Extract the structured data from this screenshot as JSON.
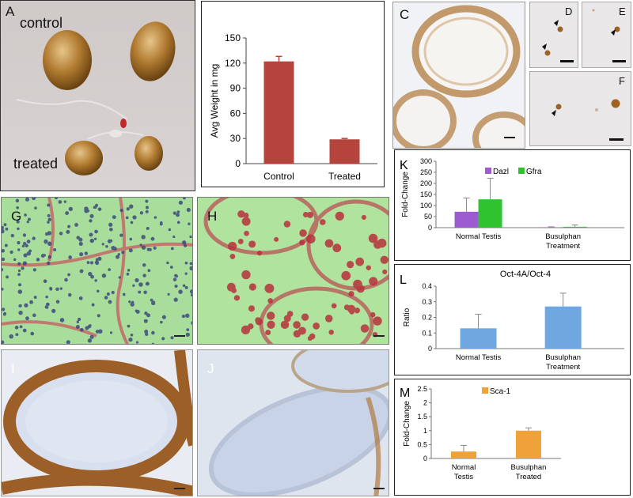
{
  "panel_letters": {
    "a": "A",
    "c": "C",
    "d": "D",
    "e": "E",
    "f": "F",
    "g": "G",
    "h": "H",
    "i": "I",
    "j": "J",
    "k": "K",
    "l": "L",
    "m": "M"
  },
  "photo_a": {
    "control_label": "control",
    "treated_label": "treated"
  },
  "colors": {
    "bar_red": "#b5453c",
    "dazl": "#9c5bd1",
    "gfra": "#2fc32f",
    "blue": "#6fa8e0",
    "orange": "#f0a23a",
    "he_green": "#a6e29a",
    "ihc_brown": "#a5652a",
    "ihc_blue": "#b7c5de"
  },
  "chart_data": [
    {
      "id": "B",
      "type": "bar",
      "categories": [
        "Control",
        "Treated"
      ],
      "values": [
        122,
        29
      ],
      "errors": [
        6,
        1
      ],
      "ylabel": "Avg Weight in mg",
      "yticks": [
        0,
        30,
        60,
        90,
        120,
        150
      ],
      "ylim": [
        0,
        150
      ]
    },
    {
      "id": "K",
      "type": "bar",
      "categories": [
        "Normal Testis",
        "Busulphan Treatment"
      ],
      "series": [
        {
          "name": "Dazl",
          "values": [
            72,
            2
          ],
          "errors": [
            62,
            2
          ]
        },
        {
          "name": "Gfra",
          "values": [
            128,
            4
          ],
          "errors": [
            95,
            8
          ]
        }
      ],
      "ylabel": "Fold-Change",
      "yticks": [
        0,
        50,
        100,
        150,
        200,
        250,
        300
      ],
      "ylim": [
        0,
        300
      ],
      "legend": "top-center"
    },
    {
      "id": "L",
      "type": "bar",
      "title": "Oct-4A/Oct-4",
      "categories": [
        "Normal Testis",
        "Busulphan Treatment"
      ],
      "values": [
        0.13,
        0.27
      ],
      "errors": [
        0.09,
        0.085
      ],
      "ylabel": "Ratio",
      "yticks": [
        0,
        0.1,
        0.2,
        0.3,
        0.4
      ],
      "ylim": [
        0,
        0.4
      ]
    },
    {
      "id": "M",
      "type": "bar",
      "categories": [
        "Normal Testis",
        "Busulphan Treated"
      ],
      "series": [
        {
          "name": "Sca-1",
          "values": [
            0.25,
            1.0
          ],
          "errors": [
            0.22,
            0.1
          ]
        }
      ],
      "ylabel": "Fold-Change",
      "yticks": [
        0,
        0.5,
        1,
        1.5,
        2,
        2.5
      ],
      "ylim": [
        0,
        2.5
      ],
      "legend": "top-center"
    }
  ]
}
